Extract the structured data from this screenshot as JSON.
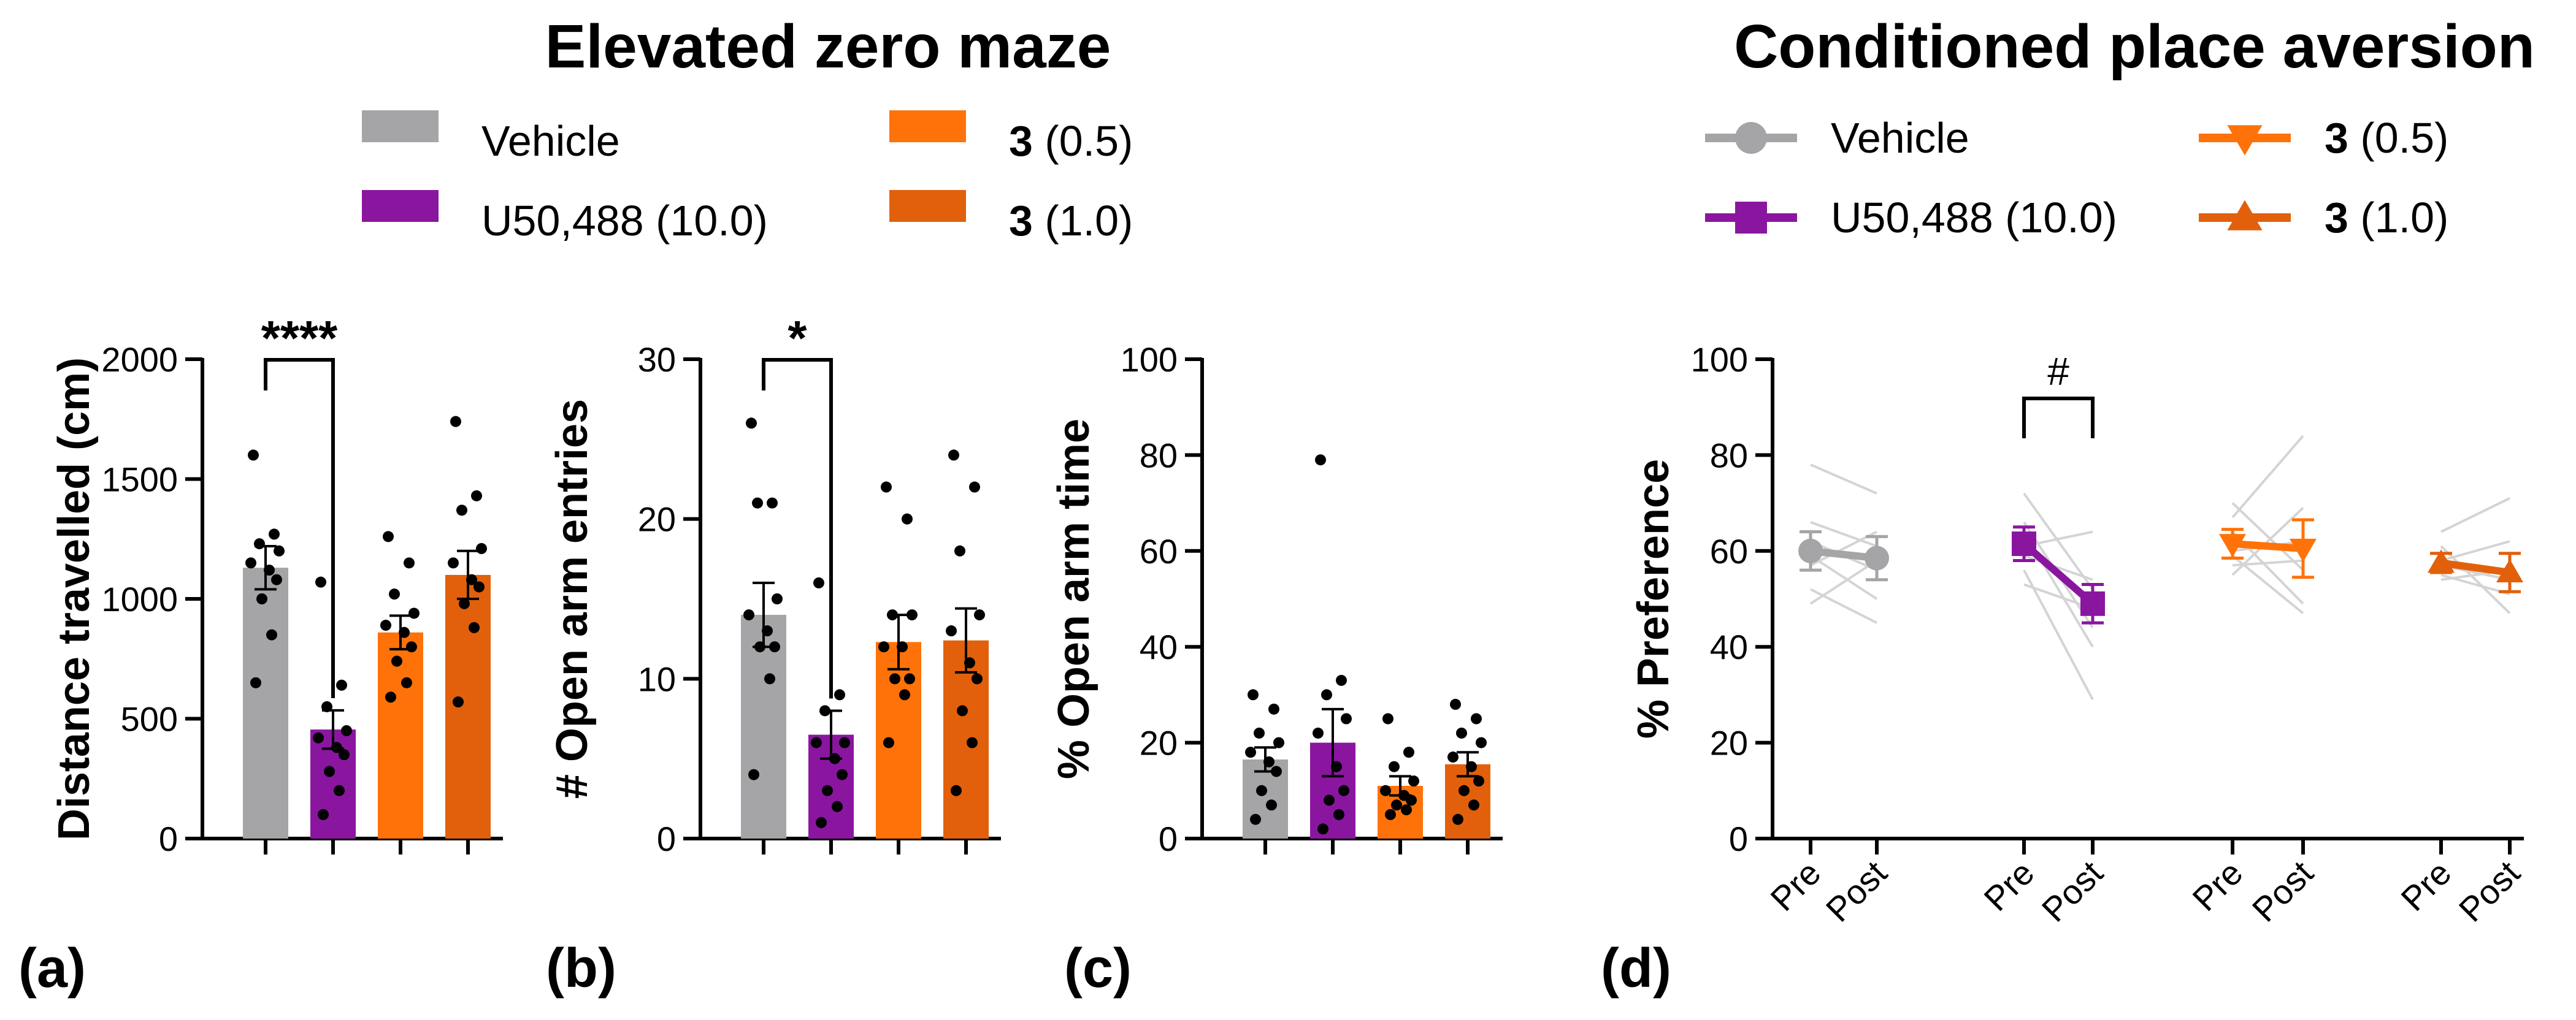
{
  "titles": {
    "left": "Elevated zero maze",
    "right": "Conditioned place aversion"
  },
  "colors": {
    "vehicle": "#a5a5a7",
    "u50488": "#8a16a0",
    "c3_05": "#ff7209",
    "c3_10": "#e2600b",
    "individual_line": "#d4d4d4",
    "axis": "#000000"
  },
  "legend_bar": [
    {
      "label": "Vehicle",
      "bold": "",
      "rest": "Vehicle",
      "color_key": "vehicle"
    },
    {
      "label": "U50,488 (10.0)",
      "bold": "",
      "rest": "U50,488 (10.0)",
      "color_key": "u50488"
    },
    {
      "label": "3 (0.5)",
      "bold": "3",
      "rest": " (0.5)",
      "color_key": "c3_05"
    },
    {
      "label": "3 (1.0)",
      "bold": "3",
      "rest": " (1.0)",
      "color_key": "c3_10"
    }
  ],
  "legend_line": [
    {
      "label": "Vehicle",
      "bold": "",
      "rest": "Vehicle",
      "marker": "circle",
      "color_key": "vehicle"
    },
    {
      "label": "U50,488 (10.0)",
      "bold": "",
      "rest": "U50,488 (10.0)",
      "marker": "square",
      "color_key": "u50488"
    },
    {
      "label": "3 (0.5)",
      "bold": "3",
      "rest": " (0.5)",
      "marker": "triangle-down",
      "color_key": "c3_05"
    },
    {
      "label": "3 (1.0)",
      "bold": "3",
      "rest": " (1.0)",
      "marker": "triangle-up",
      "color_key": "c3_10"
    }
  ],
  "chart_data": [
    {
      "panel": "(a)",
      "type": "bar",
      "ylabel": "Distance travelled (cm)",
      "ylim": [
        0,
        2000
      ],
      "yticks": [
        0,
        500,
        1000,
        1500,
        2000
      ],
      "groups": [
        "Vehicle",
        "U50,488 (10.0)",
        "3 (0.5)",
        "3 (1.0)"
      ],
      "values": [
        1130,
        455,
        860,
        1100
      ],
      "sem": [
        90,
        80,
        70,
        100
      ],
      "points": [
        [
          1600,
          1270,
          1230,
          1200,
          1150,
          1120,
          1080,
          1000,
          850,
          650
        ],
        [
          1070,
          640,
          550,
          450,
          420,
          380,
          350,
          280,
          200,
          100
        ],
        [
          1260,
          1150,
          1020,
          940,
          890,
          860,
          800,
          740,
          650,
          590
        ],
        [
          1740,
          1430,
          1370,
          1210,
          1150,
          1080,
          1050,
          980,
          880,
          570
        ]
      ],
      "annotations": [
        {
          "text": "****",
          "from": 0,
          "to": 1
        }
      ]
    },
    {
      "panel": "(b)",
      "type": "bar",
      "ylabel": "# Open arm entries",
      "ylim": [
        0,
        30
      ],
      "yticks": [
        0,
        10,
        20,
        30
      ],
      "groups": [
        "Vehicle",
        "U50,488 (10.0)",
        "3 (0.5)",
        "3 (1.0)"
      ],
      "values": [
        14,
        6.5,
        12.3,
        12.4
      ],
      "sem": [
        2.0,
        1.5,
        1.7,
        2.0
      ],
      "points": [
        [
          26,
          21,
          21,
          15,
          14,
          13,
          12,
          12,
          10,
          4
        ],
        [
          16,
          9,
          8,
          6,
          6,
          5,
          4,
          3,
          2,
          1
        ],
        [
          22,
          20,
          14,
          14,
          12,
          12,
          10,
          10,
          9,
          6
        ],
        [
          24,
          22,
          18,
          14,
          13,
          11,
          10,
          8,
          6,
          3
        ]
      ],
      "annotations": [
        {
          "text": "*",
          "from": 0,
          "to": 1
        }
      ]
    },
    {
      "panel": "(c)",
      "type": "bar",
      "ylabel": "% Open arm time",
      "ylim": [
        0,
        100
      ],
      "yticks": [
        0,
        20,
        40,
        60,
        80,
        100
      ],
      "groups": [
        "Vehicle",
        "U50,488 (10.0)",
        "3 (0.5)",
        "3 (1.0)"
      ],
      "values": [
        16.5,
        20,
        11,
        15.5
      ],
      "sem": [
        2.5,
        7,
        2,
        2.5
      ],
      "points": [
        [
          30,
          27,
          22,
          20,
          18,
          16,
          14,
          10,
          7,
          4
        ],
        [
          79,
          33,
          30,
          25,
          22,
          15,
          10,
          8,
          5,
          2
        ],
        [
          25,
          18,
          15,
          12,
          10,
          9,
          8,
          7,
          6,
          5
        ],
        [
          28,
          25,
          22,
          20,
          17,
          15,
          12,
          10,
          7,
          4
        ]
      ],
      "annotations": []
    },
    {
      "panel": "(d)",
      "type": "line",
      "ylabel": "% Preference",
      "ylim": [
        0,
        100
      ],
      "yticks": [
        0,
        20,
        40,
        60,
        80,
        100
      ],
      "x_tick_labels": [
        "Pre",
        "Post"
      ],
      "series": [
        {
          "name": "Vehicle",
          "pre": 60,
          "post": 58.5,
          "sem_pre": 4,
          "sem_post": 4.5,
          "individual": [
            [
              78,
              72
            ],
            [
              66,
              61
            ],
            [
              62,
              56
            ],
            [
              59,
              50
            ],
            [
              57,
              64
            ],
            [
              52,
              45
            ],
            [
              49,
              58
            ]
          ]
        },
        {
          "name": "U50,488 (10.0)",
          "pre": 61.5,
          "post": 49,
          "sem_pre": 3.5,
          "sem_post": 4,
          "individual": [
            [
              72,
              52
            ],
            [
              66,
              44
            ],
            [
              61,
              64
            ],
            [
              59,
              54
            ],
            [
              56,
              29
            ],
            [
              53,
              48
            ],
            [
              64,
              40
            ]
          ]
        },
        {
          "name": "3 (0.5)",
          "pre": 61.5,
          "post": 60.5,
          "sem_pre": 3,
          "sem_post": 6,
          "individual": [
            [
              70,
              56
            ],
            [
              67,
              84
            ],
            [
              64,
              49
            ],
            [
              59,
              47
            ],
            [
              55,
              69
            ],
            [
              60,
              62
            ],
            [
              57,
              58
            ]
          ]
        },
        {
          "name": "3 (1.0)",
          "pre": 57.5,
          "post": 55.5,
          "sem_pre": 2,
          "sem_post": 4,
          "individual": [
            [
              64,
              71
            ],
            [
              61,
              47
            ],
            [
              57,
              54
            ],
            [
              55,
              51
            ],
            [
              58,
              62
            ],
            [
              54,
              56
            ]
          ]
        }
      ],
      "annotations": [
        {
          "text": "#",
          "group": 1
        }
      ]
    }
  ]
}
